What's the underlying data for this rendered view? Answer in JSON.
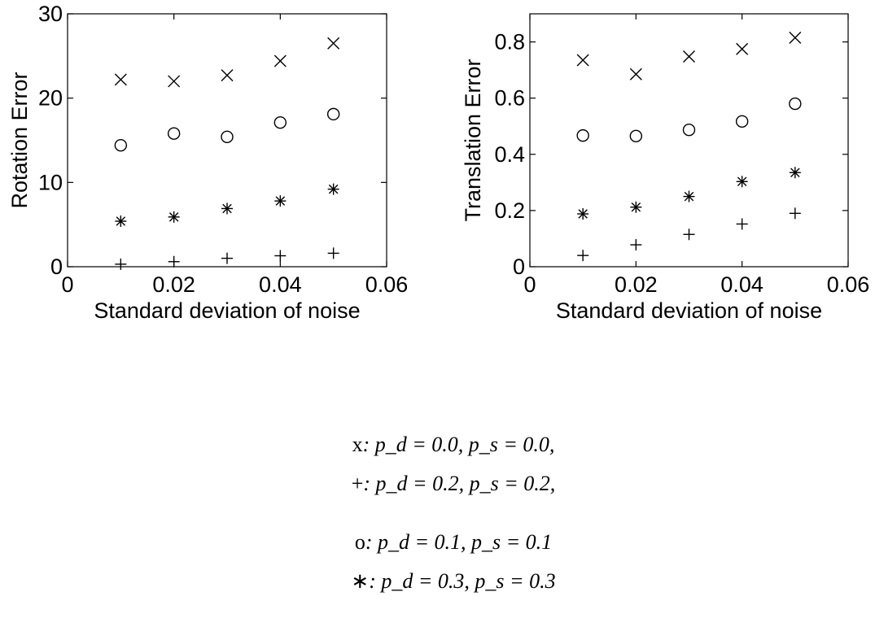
{
  "chart_data": [
    {
      "type": "scatter",
      "title": "",
      "xlabel": "Standard deviation of noise",
      "ylabel": "Rotation Error",
      "xlim": [
        0,
        0.06
      ],
      "ylim": [
        0,
        30
      ],
      "xticks": [
        "0",
        "0.02",
        "0.04",
        "0.06"
      ],
      "yticks": [
        "0",
        "10",
        "20",
        "30"
      ],
      "x": [
        0.01,
        0.02,
        0.03,
        0.04,
        0.05
      ],
      "series": [
        {
          "marker": "x",
          "values": [
            22.2,
            22.0,
            22.7,
            24.4,
            26.5
          ]
        },
        {
          "marker": "o",
          "values": [
            14.4,
            15.8,
            15.4,
            17.1,
            18.1
          ]
        },
        {
          "marker": "*",
          "values": [
            5.4,
            5.9,
            6.9,
            7.8,
            9.2
          ]
        },
        {
          "marker": "+",
          "values": [
            0.3,
            0.6,
            1.0,
            1.3,
            1.6
          ]
        }
      ]
    },
    {
      "type": "scatter",
      "title": "",
      "xlabel": "Standard deviation of noise",
      "ylabel": "Translation Error",
      "xlim": [
        0,
        0.06
      ],
      "ylim": [
        0,
        0.9
      ],
      "xticks": [
        "0",
        "0.02",
        "0.04",
        "0.06"
      ],
      "yticks": [
        "0",
        "0.2",
        "0.4",
        "0.6",
        "0.8"
      ],
      "x": [
        0.01,
        0.02,
        0.03,
        0.04,
        0.05
      ],
      "series": [
        {
          "marker": "x",
          "values": [
            0.735,
            0.685,
            0.748,
            0.775,
            0.815
          ]
        },
        {
          "marker": "o",
          "values": [
            0.467,
            0.465,
            0.487,
            0.517,
            0.58
          ]
        },
        {
          "marker": "*",
          "values": [
            0.188,
            0.212,
            0.25,
            0.303,
            0.335
          ]
        },
        {
          "marker": "+",
          "values": [
            0.04,
            0.078,
            0.115,
            0.152,
            0.19
          ]
        }
      ]
    }
  ],
  "legend": [
    [
      {
        "symbol": "x",
        "text": ": p_d = 0.0, p_s = 0.0,"
      },
      {
        "symbol": "o",
        "text": ": p_d = 0.1, p_s = 0.1"
      }
    ],
    [
      {
        "symbol": "+",
        "text": ": p_d = 0.2, p_s = 0.2,"
      },
      {
        "symbol": "∗",
        "text": ": p_d = 0.3, p_s = 0.3"
      }
    ]
  ]
}
